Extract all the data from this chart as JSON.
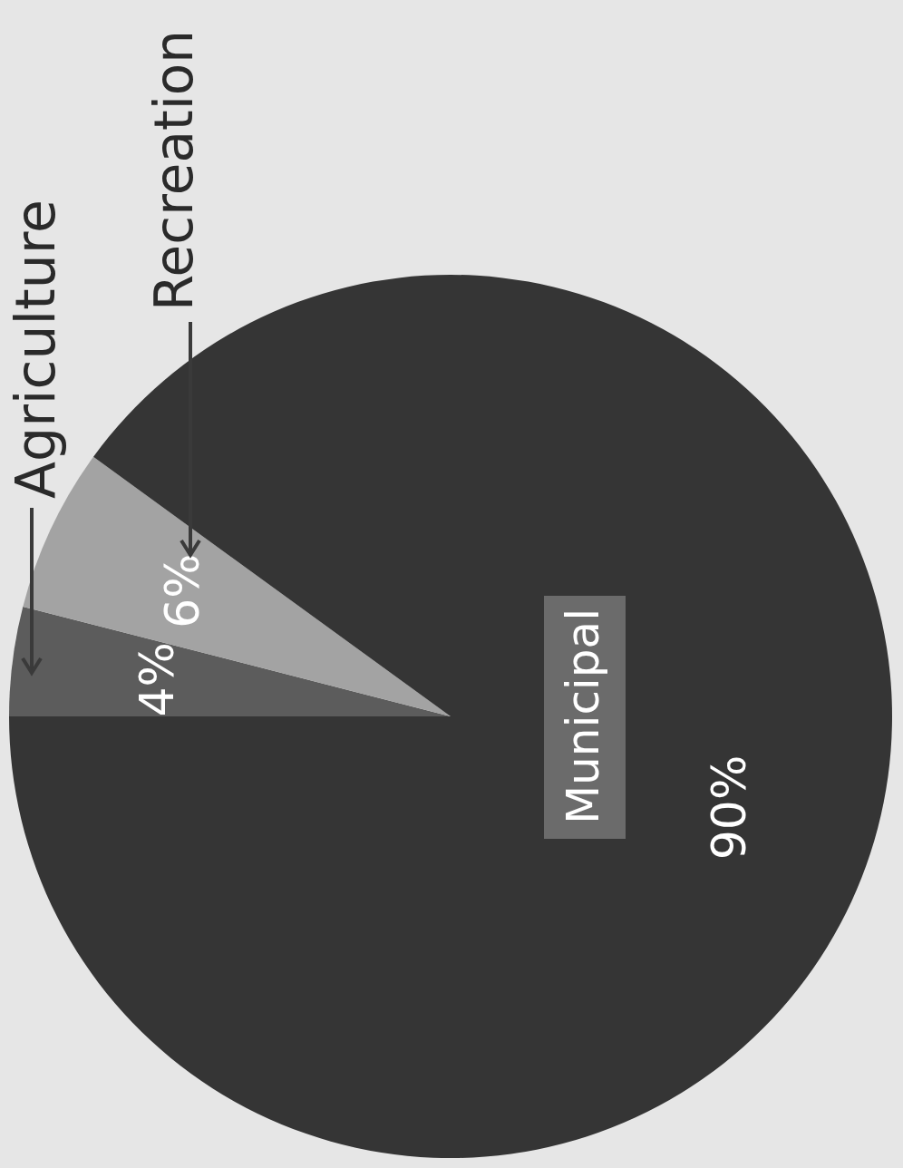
{
  "chart_data": {
    "type": "pie",
    "categories": [
      "Agriculture",
      "Recreation",
      "Municipal"
    ],
    "values": [
      4,
      6,
      90
    ],
    "colors": [
      "#5c5c5c",
      "#a3a3a3",
      "#353535"
    ],
    "value_labels": [
      "4%",
      "6%",
      "90%"
    ]
  }
}
